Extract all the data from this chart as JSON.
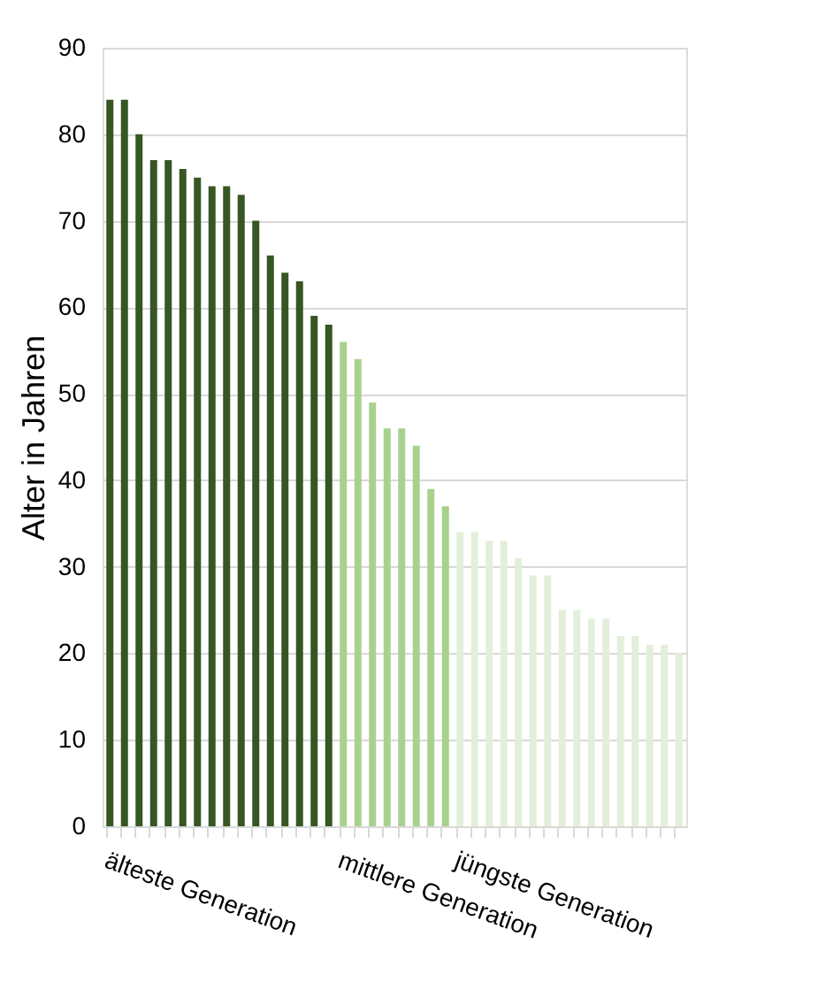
{
  "chart_data": {
    "type": "bar",
    "ylabel": "Alter in Jahren",
    "categories": [
      "älteste Generation",
      null,
      null,
      null,
      null,
      null,
      null,
      null,
      null,
      null,
      null,
      null,
      null,
      null,
      null,
      null,
      "mittlere Generation",
      null,
      null,
      null,
      null,
      null,
      null,
      null,
      "jüngste Generation",
      null,
      null,
      null,
      null,
      null,
      null,
      null,
      null,
      null,
      null,
      null,
      null,
      null,
      null,
      null
    ],
    "values": [
      84,
      84,
      80,
      77,
      77,
      76,
      75,
      74,
      74,
      73,
      70,
      66,
      64,
      63,
      59,
      58,
      56,
      54,
      49,
      46,
      46,
      44,
      39,
      37,
      34,
      34,
      33,
      33,
      31,
      29,
      29,
      25,
      25,
      24,
      24,
      22,
      22,
      21,
      21,
      20
    ],
    "colors": [
      "#375623",
      "#375623",
      "#375623",
      "#375623",
      "#375623",
      "#375623",
      "#375623",
      "#375623",
      "#375623",
      "#375623",
      "#375623",
      "#375623",
      "#375623",
      "#375623",
      "#375623",
      "#375623",
      "#a9d18e",
      "#a9d18e",
      "#a9d18e",
      "#a9d18e",
      "#a9d18e",
      "#a9d18e",
      "#a9d18e",
      "#a9d18e",
      "#e2efda",
      "#e2efda",
      "#e2efda",
      "#e2efda",
      "#e2efda",
      "#e2efda",
      "#e2efda",
      "#e2efda",
      "#e2efda",
      "#e2efda",
      "#e2efda",
      "#e2efda",
      "#e2efda",
      "#e2efda",
      "#e2efda",
      "#e2efda"
    ],
    "ylim": [
      0,
      90
    ],
    "yticks": [
      0,
      10,
      20,
      30,
      40,
      50,
      60,
      70,
      80,
      90
    ],
    "grid": "y"
  }
}
